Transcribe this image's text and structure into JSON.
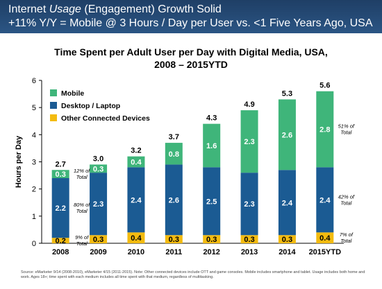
{
  "header": {
    "line1_pre": "Internet ",
    "line1_em": "Usage",
    "line1_post": " (Engagement) Growth Solid",
    "line2": "+11% Y/Y = Mobile @ 3 Hours / Day per User vs. <1  Five Years Ago, USA"
  },
  "colors": {
    "header_bg": "#24476f",
    "mobile": "#3fb57a",
    "desktop": "#1b5b93",
    "other": "#f3bb10"
  },
  "chart_data": {
    "type": "bar",
    "stacked": true,
    "title_line1": "Time Spent per Adult User per Day with Digital Media, USA,",
    "title_line2": "2008 – 2015YTD",
    "xlabel": "",
    "ylabel": "Hours per Day",
    "ylim": [
      0,
      6
    ],
    "yticks": [
      "0",
      "1",
      "2",
      "3",
      "4",
      "5",
      "6"
    ],
    "grid": false,
    "legend_position": "top-left",
    "categories": [
      "2008",
      "2009",
      "2010",
      "2011",
      "2012",
      "2013",
      "2014",
      "2015YTD"
    ],
    "series": [
      {
        "name": "Other Connected Devices",
        "color": "#f3bb10",
        "values": [
          0.2,
          0.3,
          0.4,
          0.3,
          0.3,
          0.3,
          0.3,
          0.4
        ],
        "labels": [
          "0.2",
          "0.3",
          "0.4",
          "0.3",
          "0.3",
          "0.3",
          "0.3",
          "0.4"
        ]
      },
      {
        "name": "Desktop / Laptop",
        "color": "#1b5b93",
        "values": [
          2.2,
          2.3,
          2.4,
          2.6,
          2.5,
          2.3,
          2.4,
          2.4
        ],
        "labels": [
          "2.2",
          "2.3",
          "2.4",
          "2.6",
          "2.5",
          "2.3",
          "2.4",
          "2.4"
        ]
      },
      {
        "name": "Mobile",
        "color": "#3fb57a",
        "values": [
          0.3,
          0.3,
          0.4,
          0.8,
          1.6,
          2.3,
          2.6,
          2.8
        ],
        "labels": [
          "0.3",
          "0.3",
          "0.4",
          "0.8",
          "1.6",
          "2.3",
          "2.6",
          "2.8"
        ]
      }
    ],
    "totals": [
      "2.7",
      "3.0",
      "3.2",
      "3.7",
      "4.3",
      "4.9",
      "5.3",
      "5.6"
    ],
    "annotations": [
      {
        "category": "2008",
        "series": "Mobile",
        "text": [
          "12% of",
          "Total"
        ]
      },
      {
        "category": "2008",
        "series": "Desktop / Laptop",
        "text": [
          "80% of",
          "Total"
        ]
      },
      {
        "category": "2008",
        "series": "Other Connected Devices",
        "text": [
          "9% of",
          "Total"
        ]
      },
      {
        "category": "2015YTD",
        "series": "Mobile",
        "text": [
          "51% of",
          "Total"
        ]
      },
      {
        "category": "2015YTD",
        "series": "Desktop / Laptop",
        "text": [
          "42% of",
          "Total"
        ]
      },
      {
        "category": "2015YTD",
        "series": "Other Connected Devices",
        "text": [
          "7% of",
          "Total"
        ]
      }
    ]
  },
  "source": "Source: eMarketer 9/14 (2008-2010), eMarketer 4/15 (2011-2015). Note: Other connected devices include OTT and game consoles. Mobile includes smartphone and tablet. Usage includes both home and work. Ages 18+; time spent with each medium includes all time spent with that medium, regardless of multitasking."
}
